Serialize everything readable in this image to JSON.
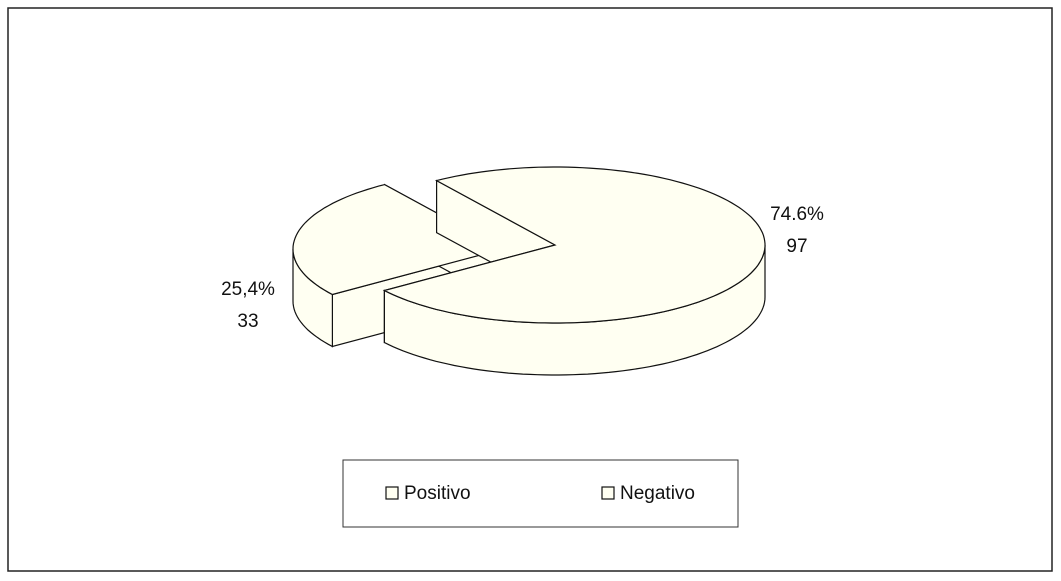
{
  "chart_data": {
    "type": "pie",
    "categories": [
      "Positivo",
      "Negativo"
    ],
    "values": [
      97,
      33
    ],
    "percents": [
      74.6,
      25.4
    ],
    "percent_labels": [
      "74.6%",
      "25,4%"
    ],
    "colors": [
      "#fffff2",
      "#fffff2"
    ]
  }
}
